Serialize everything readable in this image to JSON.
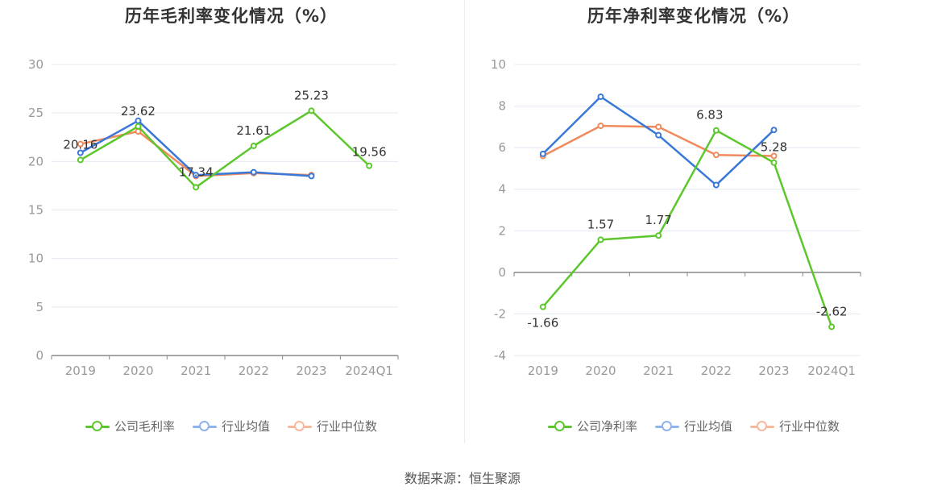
{
  "source": "数据来源：恒生聚源",
  "chart_data": [
    {
      "type": "line",
      "title": "历年毛利率变化情况（%）",
      "categories": [
        "2019",
        "2020",
        "2021",
        "2022",
        "2023",
        "2024Q1"
      ],
      "ylim": [
        0,
        30
      ],
      "yticks": [
        0,
        5,
        10,
        15,
        20,
        25,
        30
      ],
      "grid": true,
      "legend_position": "bottom",
      "series": [
        {
          "name": "公司毛利率",
          "color": "#5cc72c",
          "values": [
            20.16,
            23.62,
            17.34,
            21.61,
            25.23,
            19.56
          ],
          "labels": [
            "20.16",
            "23.62",
            "17.34",
            "21.61",
            "25.23",
            "19.56"
          ]
        },
        {
          "name": "行业均值",
          "color": "#3a78d8",
          "values": [
            20.9,
            24.2,
            18.6,
            18.9,
            18.5,
            null
          ]
        },
        {
          "name": "行业中位数",
          "color": "#f08a5d",
          "values": [
            21.8,
            23.1,
            18.5,
            18.8,
            18.6,
            null
          ]
        }
      ]
    },
    {
      "type": "line",
      "title": "历年净利率变化情况（%）",
      "categories": [
        "2019",
        "2020",
        "2021",
        "2022",
        "2023",
        "2024Q1"
      ],
      "ylim": [
        -4,
        10
      ],
      "yticks": [
        -4,
        -2,
        0,
        2,
        4,
        6,
        8,
        10
      ],
      "grid": true,
      "legend_position": "bottom",
      "series": [
        {
          "name": "公司净利率",
          "color": "#5cc72c",
          "values": [
            -1.66,
            1.57,
            1.77,
            6.83,
            5.28,
            -2.62
          ],
          "labels": [
            "-1.66",
            "1.57",
            "1.77",
            "6.83",
            "5.28",
            "-2.62"
          ]
        },
        {
          "name": "行业均值",
          "color": "#3a78d8",
          "values": [
            5.7,
            8.45,
            6.6,
            4.2,
            6.85,
            null
          ]
        },
        {
          "name": "行业中位数",
          "color": "#f08a5d",
          "values": [
            5.6,
            7.05,
            7.0,
            5.65,
            5.6,
            null
          ]
        }
      ]
    }
  ]
}
